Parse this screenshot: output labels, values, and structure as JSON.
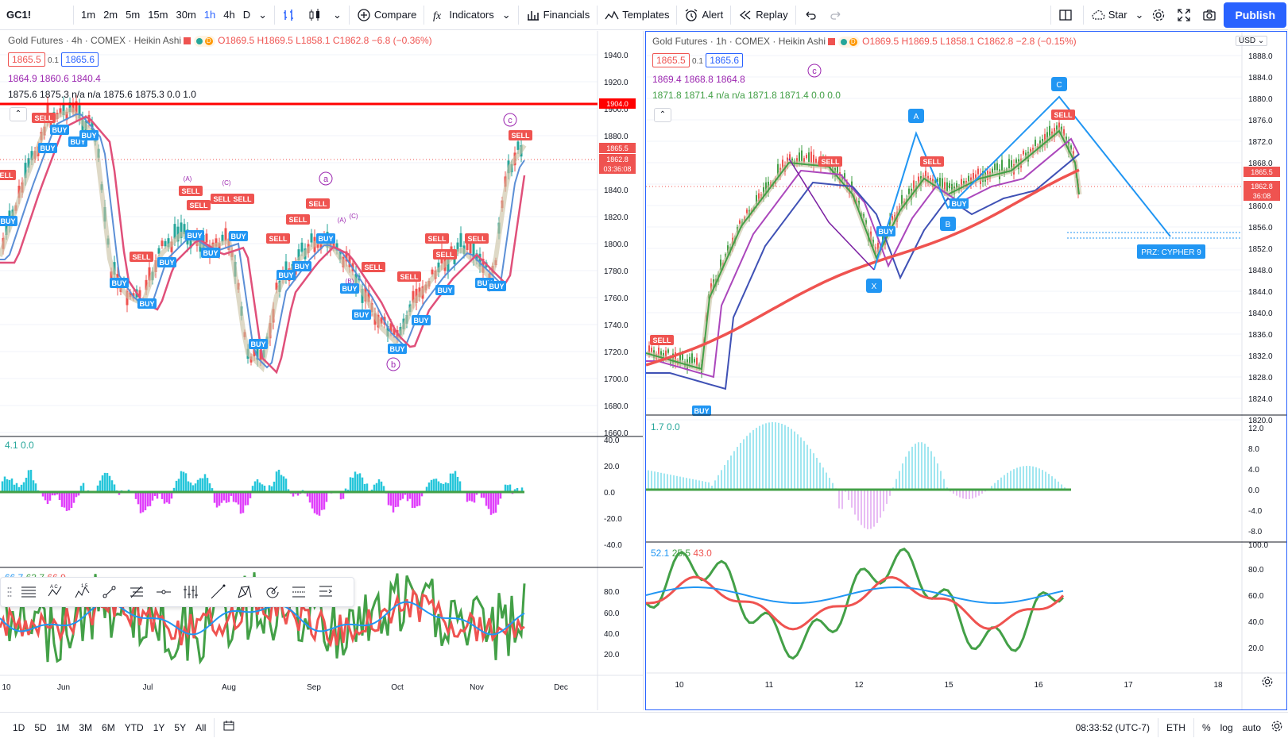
{
  "toolbar": {
    "symbol": "GC1!",
    "intervals": [
      "1m",
      "2m",
      "5m",
      "15m",
      "30m",
      "1h",
      "4h",
      "D"
    ],
    "active_interval": "1h",
    "compare_label": "Compare",
    "indicators_label": "Indicators",
    "financials_label": "Financials",
    "templates_label": "Templates",
    "alert_label": "Alert",
    "replay_label": "Replay",
    "star_label": "Star",
    "publish_label": "Publish"
  },
  "left_chart": {
    "title": "Gold Futures · 4h · COMEX · Heikin Ashi",
    "ohlc": "O1869.5 H1869.5 L1858.1 C1862.8 −6.8 (−0.36%)",
    "bid": "1865.5",
    "spread": "0.1",
    "ask": "1865.6",
    "ma_line": "1864.9 1860.6 1840.4",
    "ind_line": "1875.6 1875.3 n/a n/a 1875.6 1875.3 0.0 1.0",
    "price_axis": [
      "1940.0",
      "1920.0",
      "1900.0",
      "1880.0",
      "1860.0",
      "1840.0",
      "1820.0",
      "1800.0",
      "1780.0",
      "1760.0",
      "1740.0",
      "1720.0",
      "1700.0",
      "1680.0",
      "1660.0"
    ],
    "price_tags": {
      "hline": "1904.0",
      "bid": "1865.5",
      "last": "1862.8",
      "countdown": "03:36:08"
    },
    "wave_labels": [
      "a",
      "b",
      "c",
      "(A)",
      "(C)",
      "(A)",
      "(C)",
      "(B)"
    ],
    "osc_legend": "4.1 0.0",
    "osc_axis": [
      "40.0",
      "20.0",
      "0.0",
      "-20.0",
      "-40.0"
    ],
    "rsi_legend": {
      "a": "66.7",
      "b": "63.7",
      "c": "66.9"
    },
    "rsi_axis": [
      "80.0",
      "60.0",
      "40.0",
      "20.0"
    ],
    "time_axis": [
      "10",
      "Jun",
      "Jul",
      "Aug",
      "Sep",
      "Oct",
      "Nov",
      "Dec"
    ]
  },
  "right_chart": {
    "title": "Gold Futures · 1h · COMEX · Heikin Ashi",
    "ohlc": "O1869.5 H1869.5 L1858.1 C1862.8 −2.8 (−0.15%)",
    "bid": "1865.5",
    "spread": "0.1",
    "ask": "1865.6",
    "ma_line": "1869.4 1868.8 1864.8",
    "ind_line": "1871.8 1871.4 n/a n/a 1871.8 1871.4 0.0 0.0",
    "currency": "USD",
    "price_axis": [
      "1888.0",
      "1884.0",
      "1880.0",
      "1876.0",
      "1872.0",
      "1868.0",
      "1864.0",
      "1860.0",
      "1856.0",
      "1852.0",
      "1848.0",
      "1844.0",
      "1840.0",
      "1836.0",
      "1832.0",
      "1828.0",
      "1824.0",
      "1820.0"
    ],
    "price_tags": {
      "bid": "1865.5",
      "last": "1862.8",
      "countdown": "36:08"
    },
    "pattern_points": [
      "X",
      "A",
      "B",
      "C"
    ],
    "prz_label": "PRZ: CYPHER 9",
    "wave_label": "c",
    "osc_legend": "1.7 0.0",
    "osc_axis": [
      "12.0",
      "8.0",
      "4.0",
      "0.0",
      "-4.0",
      "-8.0"
    ],
    "rsi_legend": {
      "a": "52.1",
      "b": "25.5",
      "c": "43.0"
    },
    "rsi_axis": [
      "100.0",
      "80.0",
      "60.0",
      "40.0",
      "20.0"
    ],
    "time_axis": [
      "10",
      "11",
      "12",
      "15",
      "16",
      "17",
      "18"
    ]
  },
  "signal_labels": {
    "buy": "BUY",
    "sell": "SELL"
  },
  "bottombar": {
    "ranges": [
      "1D",
      "5D",
      "1M",
      "3M",
      "6M",
      "YTD",
      "1Y",
      "5Y",
      "All"
    ],
    "time": "08:33:52 (UTC-7)",
    "session": "ETH",
    "percent": "%",
    "log": "log",
    "auto": "auto"
  },
  "colors": {
    "accent": "#2962ff",
    "buy": "#2196f3",
    "sell": "#ef5350",
    "green": "#43a047",
    "purple": "#9c27b0",
    "cyan": "#26c6da",
    "magenta": "#e040fb"
  }
}
